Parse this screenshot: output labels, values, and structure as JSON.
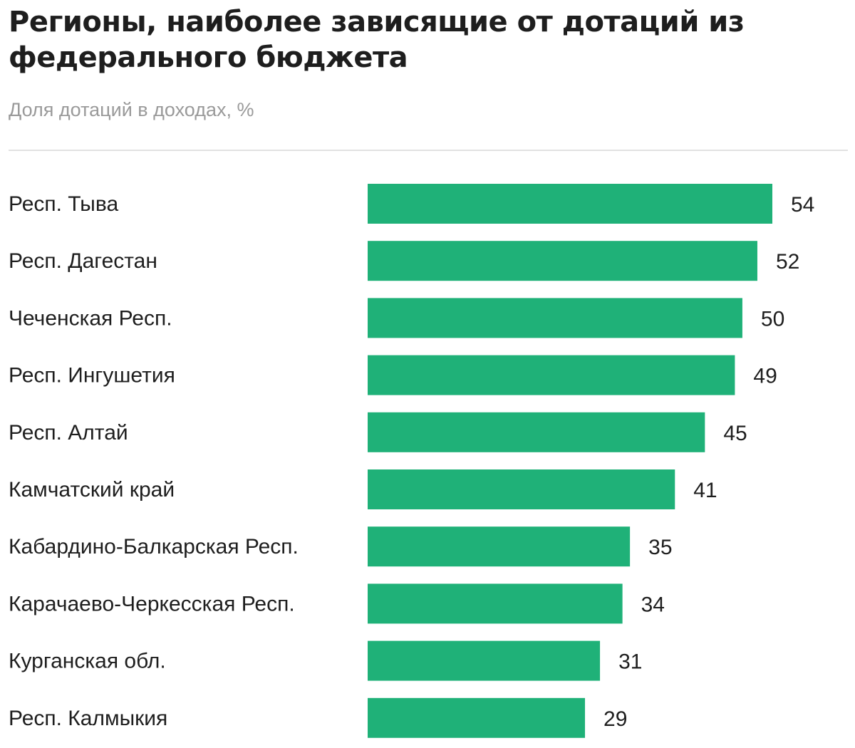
{
  "chart_data": {
    "type": "bar",
    "orientation": "horizontal",
    "title": "Регионы, наиболее зависящие от дотаций из федерального бюджета",
    "subtitle": "Доля дотаций в доходах, %",
    "categories": [
      "Респ. Тыва",
      "Респ. Дагестан",
      "Чеченская Респ.",
      "Респ. Ингушетия",
      "Респ. Алтай",
      "Камчатский край",
      "Кабардино-Балкарская Респ.",
      "Карачаево-Черкесская Респ.",
      "Курганская обл.",
      "Респ. Калмыкия"
    ],
    "values": [
      54,
      52,
      50,
      49,
      45,
      41,
      35,
      34,
      31,
      29
    ],
    "xlim": [
      0,
      54
    ],
    "grid": false,
    "legend": "none",
    "bar_color": "#1fb178",
    "value_labels": "outside-end"
  }
}
